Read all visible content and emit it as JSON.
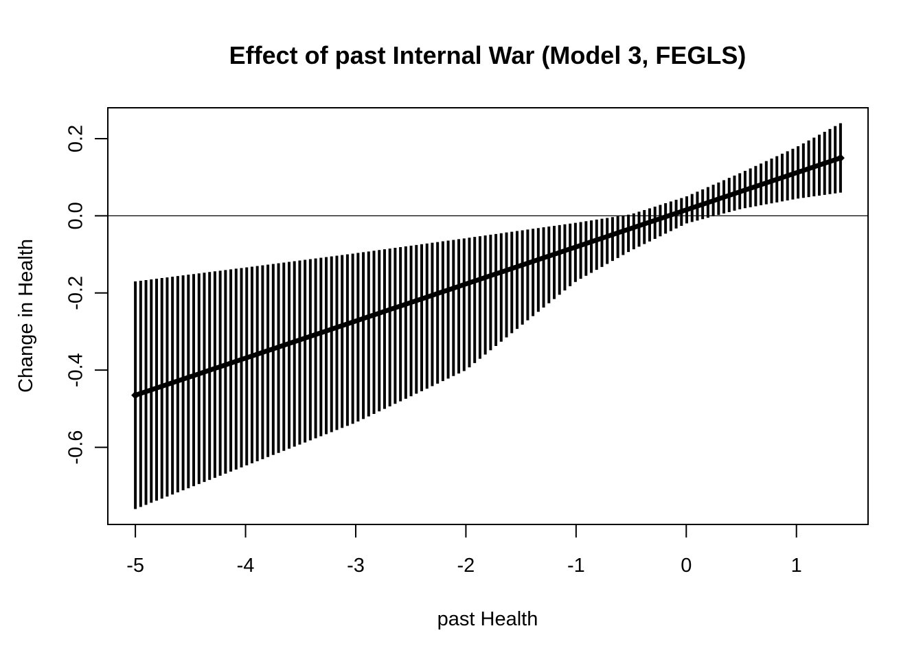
{
  "chart_data": {
    "type": "line",
    "title": "Effect of past Internal War (Model 3, FEGLS)",
    "xlabel": "past Health",
    "ylabel": "Change in Health",
    "xlim": [
      -5.25,
      1.65
    ],
    "ylim": [
      -0.8,
      0.28
    ],
    "xticks": [
      -5,
      -4,
      -3,
      -2,
      -1,
      0,
      1
    ],
    "xtick_labels": [
      "-5",
      "-4",
      "-3",
      "-2",
      "-1",
      "0",
      "1"
    ],
    "yticks": [
      -0.6,
      -0.4,
      -0.2,
      0.0,
      0.2
    ],
    "ytick_labels": [
      "-0.6",
      "-0.4",
      "-0.2",
      "0.0",
      "0.2"
    ],
    "reference_line_y": 0,
    "series": [
      {
        "style": "thick-line-with-vertical-interval-bars",
        "color": "#000000",
        "x_start": -5.0,
        "x_end": 1.4,
        "n_points": 134,
        "estimate_at_x_start": -0.465,
        "estimate_at_x_end": 0.15,
        "anchors": [
          {
            "x": -5.0,
            "y": -0.465,
            "lower": -0.76,
            "upper": -0.17
          },
          {
            "x": -4.0,
            "y": -0.369,
            "lower": -0.648,
            "upper": -0.134
          },
          {
            "x": -3.0,
            "y": -0.273,
            "lower": -0.536,
            "upper": -0.097
          },
          {
            "x": -2.0,
            "y": -0.177,
            "lower": -0.4,
            "upper": -0.058
          },
          {
            "x": -1.0,
            "y": -0.081,
            "lower": -0.17,
            "upper": -0.018
          },
          {
            "x": -0.5,
            "y": -0.033,
            "lower": -0.09,
            "upper": 0.004
          },
          {
            "x": 0.0,
            "y": 0.015,
            "lower": -0.02,
            "upper": 0.05
          },
          {
            "x": 0.5,
            "y": 0.063,
            "lower": 0.018,
            "upper": 0.112
          },
          {
            "x": 1.0,
            "y": 0.111,
            "lower": 0.044,
            "upper": 0.178
          },
          {
            "x": 1.4,
            "y": 0.15,
            "lower": 0.06,
            "upper": 0.24
          }
        ]
      }
    ]
  }
}
